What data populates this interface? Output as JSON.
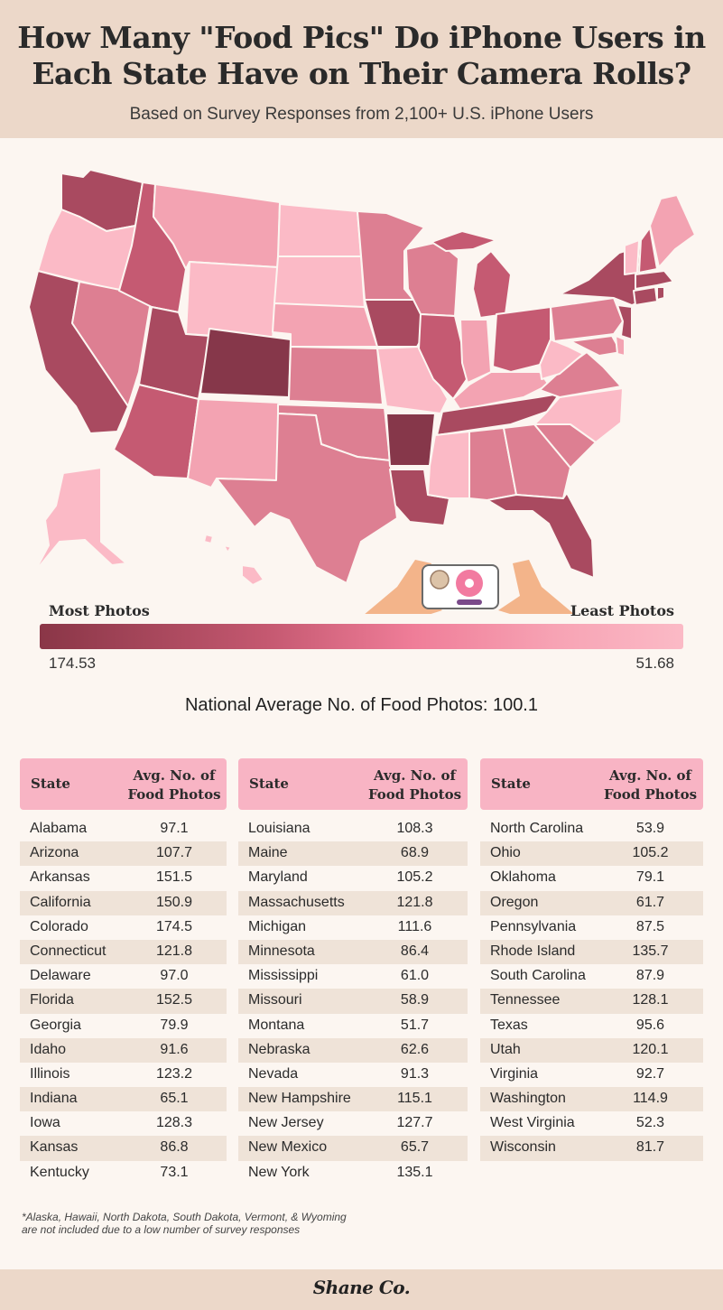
{
  "title_line1": "How Many \"Food Pics\" Do iPhone Users in",
  "title_line2": "Each State Have on Their Camera Rolls?",
  "subtitle": "Based on Survey Responses from 2,100+ U.S. iPhone Users",
  "legend": {
    "most_label": "Most Photos",
    "least_label": "Least Photos",
    "max_value": "174.53",
    "min_value": "51.68"
  },
  "national_average": "National Average No. of Food Photos: 100.1",
  "table_headers": {
    "state": "State",
    "avg_line1": "Avg. No. of",
    "avg_line2": "Food Photos"
  },
  "columns": [
    [
      {
        "state": "Alabama",
        "value": "97.1"
      },
      {
        "state": "Arizona",
        "value": "107.7"
      },
      {
        "state": "Arkansas",
        "value": "151.5"
      },
      {
        "state": "California",
        "value": "150.9"
      },
      {
        "state": "Colorado",
        "value": "174.5"
      },
      {
        "state": "Connecticut",
        "value": "121.8"
      },
      {
        "state": "Delaware",
        "value": "97.0"
      },
      {
        "state": "Florida",
        "value": "152.5"
      },
      {
        "state": "Georgia",
        "value": "79.9"
      },
      {
        "state": "Idaho",
        "value": "91.6"
      },
      {
        "state": "Illinois",
        "value": "123.2"
      },
      {
        "state": "Indiana",
        "value": "65.1"
      },
      {
        "state": "Iowa",
        "value": "128.3"
      },
      {
        "state": "Kansas",
        "value": "86.8"
      },
      {
        "state": "Kentucky",
        "value": "73.1"
      }
    ],
    [
      {
        "state": "Louisiana",
        "value": "108.3"
      },
      {
        "state": "Maine",
        "value": "68.9"
      },
      {
        "state": "Maryland",
        "value": "105.2"
      },
      {
        "state": "Massachusetts",
        "value": "121.8"
      },
      {
        "state": "Michigan",
        "value": "111.6"
      },
      {
        "state": "Minnesota",
        "value": "86.4"
      },
      {
        "state": "Mississippi",
        "value": "61.0"
      },
      {
        "state": "Missouri",
        "value": "58.9"
      },
      {
        "state": "Montana",
        "value": "51.7"
      },
      {
        "state": "Nebraska",
        "value": "62.6"
      },
      {
        "state": "Nevada",
        "value": "91.3"
      },
      {
        "state": "New Hampshire",
        "value": "115.1"
      },
      {
        "state": "New Jersey",
        "value": "127.7"
      },
      {
        "state": "New Mexico",
        "value": "65.7"
      },
      {
        "state": "New York",
        "value": "135.1"
      }
    ],
    [
      {
        "state": "North Carolina",
        "value": "53.9"
      },
      {
        "state": "Ohio",
        "value": "105.2"
      },
      {
        "state": "Oklahoma",
        "value": "79.1"
      },
      {
        "state": "Oregon",
        "value": "61.7"
      },
      {
        "state": "Pennsylvania",
        "value": "87.5"
      },
      {
        "state": "Rhode Island",
        "value": "135.7"
      },
      {
        "state": "South Carolina",
        "value": "87.9"
      },
      {
        "state": "Tennessee",
        "value": "128.1"
      },
      {
        "state": "Texas",
        "value": "95.6"
      },
      {
        "state": "Utah",
        "value": "120.1"
      },
      {
        "state": "Virginia",
        "value": "92.7"
      },
      {
        "state": "Washington",
        "value": "114.9"
      },
      {
        "state": "West Virginia",
        "value": "52.3"
      },
      {
        "state": "Wisconsin",
        "value": "81.7"
      }
    ]
  ],
  "footnote_line1": "*Alaska, Hawaii, North Dakota, South Dakota, Vermont, & Wyoming",
  "footnote_line2": "are not included due to a low number of survey responses",
  "logo": "Shane Co.",
  "colors": {
    "darkest": "#86374a",
    "dark": "#a94a60",
    "mid": "#c55a72",
    "mid_light": "#dd7f92",
    "light": "#f3a3b2",
    "lightest": "#fbbac6",
    "header_bg": "#ecd8c9",
    "table_header_bg": "#f8b4c4"
  }
}
